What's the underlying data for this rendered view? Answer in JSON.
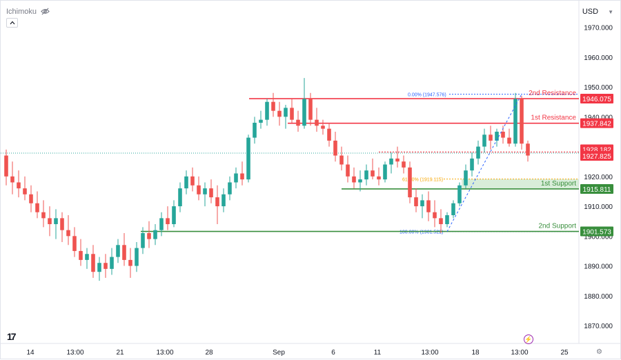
{
  "header": {
    "indicator_label": "Ichimoku",
    "currency": "USD"
  },
  "icons": {
    "visibility": "eye-crossed-icon",
    "collapse": "chevron-up-icon",
    "dropdown": "chevron-down-icon",
    "logo": "tradingview-logo-icon",
    "event": "lightning-icon",
    "settings": "gear-icon"
  },
  "colors": {
    "up": "#26a69a",
    "down": "#ef5350",
    "resistance": "#f23645",
    "support": "#388e3c",
    "fib": "#2962ff",
    "fib_mid": "#f7a600",
    "support_zone": "#c8e6c9"
  },
  "chart_data": {
    "type": "candlestick",
    "price_axis": {
      "ticks": [
        "1970.000",
        "1960.000",
        "1950.000",
        "1940.000",
        "1930.000",
        "1920.000",
        "1910.000",
        "1900.000",
        "1890.000",
        "1880.000",
        "1870.000"
      ],
      "range": [
        1864,
        1978
      ]
    },
    "time_axis": {
      "ticks": [
        "14",
        "13:00",
        "21",
        "13:00",
        "28",
        "Sep",
        "6",
        "11",
        "13:00",
        "18",
        "13:00",
        "25"
      ]
    },
    "levels": [
      {
        "name": "2nd Resistance",
        "price": "1946.075",
        "kind": "resistance"
      },
      {
        "name": "1st Resistance",
        "price": "1937.842",
        "kind": "resistance"
      },
      {
        "name": "1st Support",
        "price": "1915.811",
        "kind": "support"
      },
      {
        "name": "2nd Support",
        "price": "1901.573",
        "kind": "support"
      }
    ],
    "current_prices": [
      {
        "price": "1928.182",
        "kind": "down"
      },
      {
        "price": "1927.825",
        "kind": "down"
      }
    ],
    "fibonacci": [
      {
        "label": "0.00% (1947.576)",
        "price": 1947.576
      },
      {
        "label": "61.80% (1919.115)",
        "price": 1919.115
      },
      {
        "label": "100.00% (1901.522)",
        "price": 1901.522
      }
    ],
    "candles_ohlc": [
      [
        1927,
        1929,
        1917,
        1920
      ],
      [
        1920,
        1925,
        1914,
        1918
      ],
      [
        1918,
        1922,
        1913,
        1916
      ],
      [
        1916,
        1920,
        1912,
        1914
      ],
      [
        1914,
        1917,
        1908,
        1911
      ],
      [
        1911,
        1915,
        1906,
        1908
      ],
      [
        1908,
        1912,
        1903,
        1906
      ],
      [
        1906,
        1910,
        1900,
        1904
      ],
      [
        1904,
        1909,
        1899,
        1906
      ],
      [
        1906,
        1908,
        1898,
        1902
      ],
      [
        1902,
        1907,
        1897,
        1900
      ],
      [
        1900,
        1903,
        1893,
        1895
      ],
      [
        1895,
        1899,
        1890,
        1892
      ],
      [
        1892,
        1896,
        1889,
        1894
      ],
      [
        1894,
        1897,
        1886,
        1888
      ],
      [
        1888,
        1893,
        1885,
        1891
      ],
      [
        1891,
        1894,
        1886,
        1889
      ],
      [
        1889,
        1896,
        1887,
        1893
      ],
      [
        1893,
        1899,
        1891,
        1897
      ],
      [
        1897,
        1901,
        1890,
        1892
      ],
      [
        1892,
        1896,
        1886,
        1890
      ],
      [
        1890,
        1898,
        1888,
        1896
      ],
      [
        1896,
        1903,
        1894,
        1901
      ],
      [
        1901,
        1905,
        1896,
        1899
      ],
      [
        1899,
        1904,
        1897,
        1902
      ],
      [
        1902,
        1908,
        1900,
        1906
      ],
      [
        1906,
        1910,
        1902,
        1904
      ],
      [
        1904,
        1912,
        1903,
        1910
      ],
      [
        1910,
        1918,
        1908,
        1916
      ],
      [
        1916,
        1922,
        1914,
        1920
      ],
      [
        1920,
        1923,
        1915,
        1917
      ],
      [
        1917,
        1920,
        1912,
        1914
      ],
      [
        1914,
        1918,
        1910,
        1916
      ],
      [
        1916,
        1919,
        1911,
        1913
      ],
      [
        1913,
        1917,
        1904,
        1910
      ],
      [
        1910,
        1916,
        1908,
        1914
      ],
      [
        1914,
        1920,
        1912,
        1918
      ],
      [
        1918,
        1923,
        1916,
        1921
      ],
      [
        1921,
        1925,
        1917,
        1919
      ],
      [
        1919,
        1934,
        1918,
        1933
      ],
      [
        1933,
        1940,
        1931,
        1938
      ],
      [
        1938,
        1942,
        1936,
        1939
      ],
      [
        1939,
        1946,
        1937,
        1945
      ],
      [
        1945,
        1948,
        1940,
        1942
      ],
      [
        1942,
        1945,
        1937,
        1940
      ],
      [
        1940,
        1944,
        1936,
        1943
      ],
      [
        1943,
        1946,
        1938,
        1939
      ],
      [
        1939,
        1942,
        1935,
        1937
      ],
      [
        1937,
        1953,
        1936,
        1946
      ],
      [
        1946,
        1948,
        1937,
        1939
      ],
      [
        1939,
        1943,
        1935,
        1937
      ],
      [
        1937,
        1939,
        1934,
        1936
      ],
      [
        1936,
        1938,
        1930,
        1932
      ],
      [
        1932,
        1935,
        1925,
        1927
      ],
      [
        1927,
        1930,
        1922,
        1924
      ],
      [
        1924,
        1927,
        1918,
        1920
      ],
      [
        1920,
        1923,
        1916,
        1918
      ],
      [
        1918,
        1922,
        1915,
        1919
      ],
      [
        1919,
        1924,
        1917,
        1922
      ],
      [
        1922,
        1926,
        1919,
        1920
      ],
      [
        1920,
        1923,
        1917,
        1919
      ],
      [
        1919,
        1925,
        1918,
        1924
      ],
      [
        1924,
        1928,
        1921,
        1926
      ],
      [
        1926,
        1930,
        1923,
        1925
      ],
      [
        1925,
        1927,
        1921,
        1923
      ],
      [
        1923,
        1925,
        1911,
        1913
      ],
      [
        1913,
        1916,
        1908,
        1910
      ],
      [
        1910,
        1914,
        1906,
        1912
      ],
      [
        1912,
        1915,
        1905,
        1908
      ],
      [
        1908,
        1912,
        1903,
        1906
      ],
      [
        1906,
        1909,
        1901,
        1904
      ],
      [
        1904,
        1908,
        1903,
        1907
      ],
      [
        1907,
        1912,
        1906,
        1911
      ],
      [
        1911,
        1918,
        1910,
        1917
      ],
      [
        1917,
        1924,
        1916,
        1922
      ],
      [
        1922,
        1928,
        1920,
        1926
      ],
      [
        1926,
        1932,
        1924,
        1930
      ],
      [
        1930,
        1936,
        1928,
        1934
      ],
      [
        1934,
        1937,
        1929,
        1932
      ],
      [
        1932,
        1936,
        1930,
        1935
      ],
      [
        1935,
        1937,
        1931,
        1933
      ],
      [
        1933,
        1936,
        1930,
        1931
      ],
      [
        1931,
        1948,
        1930,
        1946
      ],
      [
        1946,
        1947,
        1929,
        1931
      ],
      [
        1931,
        1932,
        1925,
        1927
      ]
    ]
  }
}
